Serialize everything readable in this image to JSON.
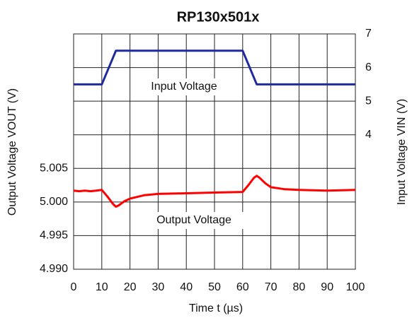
{
  "chart_data": {
    "type": "line",
    "title": "RP130x501x",
    "xlabel": "Time t (µs)",
    "ylabel": "Output Voltage VOUT (V)",
    "y2label": "Input Voltage VIN (V)",
    "xlim": [
      0,
      100
    ],
    "xticks": [
      0,
      10,
      20,
      30,
      40,
      50,
      60,
      70,
      80,
      90,
      100
    ],
    "ylim": [
      4.99,
      5.025
    ],
    "yticks": [
      {
        "value": 4.99,
        "label": "4.990"
      },
      {
        "value": 4.995,
        "label": "4.995"
      },
      {
        "value": 5.0,
        "label": "5.000"
      },
      {
        "value": 5.005,
        "label": "5.005"
      }
    ],
    "y2lim": [
      0,
      7
    ],
    "y2ticks": [
      4,
      5,
      6,
      7
    ],
    "grid": true,
    "series": [
      {
        "name": "Input Voltage",
        "color": "#1f2a9c",
        "axis": "y2",
        "x": [
          0,
          10,
          15,
          60,
          65,
          100
        ],
        "values": [
          5.5,
          5.5,
          6.5,
          6.5,
          5.5,
          5.5
        ]
      },
      {
        "name": "Output Voltage",
        "color": "#ff0000",
        "x": [
          0,
          2,
          4,
          6,
          8,
          10,
          12,
          14,
          15,
          16,
          18,
          20,
          25,
          30,
          40,
          50,
          60,
          62,
          64,
          65,
          66,
          68,
          70,
          75,
          80,
          90,
          100
        ],
        "values": [
          5.0017,
          5.0016,
          5.0017,
          5.0016,
          5.0017,
          5.0018,
          5.0008,
          4.9997,
          4.9993,
          4.9995,
          5.0001,
          5.0005,
          5.001,
          5.0012,
          5.0013,
          5.0014,
          5.0015,
          5.0025,
          5.0036,
          5.0039,
          5.0036,
          5.0028,
          5.0022,
          5.0019,
          5.0018,
          5.0017,
          5.0018
        ]
      }
    ]
  }
}
